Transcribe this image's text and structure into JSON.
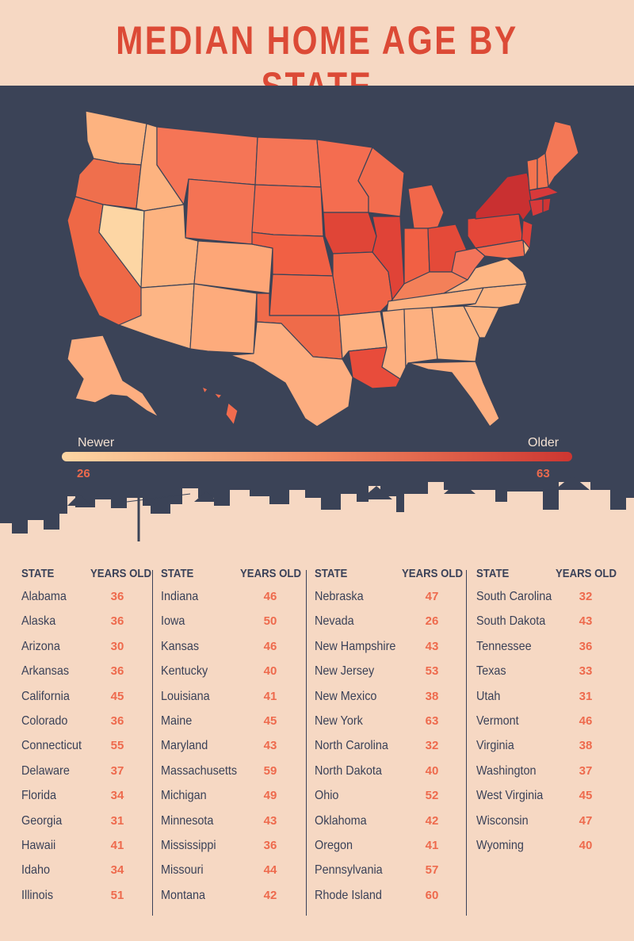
{
  "title": "MEDIAN HOME AGE BY STATE",
  "colors": {
    "background": "#f6d8c3",
    "panel": "#3b4357",
    "title": "#dc4a36",
    "value": "#ee6a4d",
    "text": "#3a4158",
    "scale_low": "#fdd6a4",
    "scale_high": "#cd3631"
  },
  "legend": {
    "newer_label": "Newer",
    "older_label": "Older",
    "min": 26,
    "max": 63,
    "min_label": "26",
    "max_label": "63"
  },
  "table": {
    "state_header": "STATE",
    "value_header": "YEARS OLD",
    "columns": [
      [
        {
          "state": "Alabama",
          "years": "36"
        },
        {
          "state": "Alaska",
          "years": "36"
        },
        {
          "state": "Arizona",
          "years": "30"
        },
        {
          "state": "Arkansas",
          "years": "36"
        },
        {
          "state": "California",
          "years": "45"
        },
        {
          "state": "Colorado",
          "years": "36"
        },
        {
          "state": "Connecticut",
          "years": "55"
        },
        {
          "state": "Delaware",
          "years": "37"
        },
        {
          "state": "Florida",
          "years": "34"
        },
        {
          "state": "Georgia",
          "years": "31"
        },
        {
          "state": "Hawaii",
          "years": "41"
        },
        {
          "state": "Idaho",
          "years": "34"
        },
        {
          "state": "Illinois",
          "years": "51"
        }
      ],
      [
        {
          "state": "Indiana",
          "years": "46"
        },
        {
          "state": "Iowa",
          "years": "50"
        },
        {
          "state": "Kansas",
          "years": "46"
        },
        {
          "state": "Kentucky",
          "years": "40"
        },
        {
          "state": "Louisiana",
          "years": "41"
        },
        {
          "state": "Maine",
          "years": "45"
        },
        {
          "state": "Maryland",
          "years": "43"
        },
        {
          "state": "Massachusetts",
          "years": "59"
        },
        {
          "state": "Michigan",
          "years": "49"
        },
        {
          "state": "Minnesota",
          "years": "43"
        },
        {
          "state": "Mississippi",
          "years": "36"
        },
        {
          "state": "Missouri",
          "years": "44"
        },
        {
          "state": "Montana",
          "years": "42"
        }
      ],
      [
        {
          "state": "Nebraska",
          "years": "47"
        },
        {
          "state": "Nevada",
          "years": "26"
        },
        {
          "state": "New Hampshire",
          "years": "43"
        },
        {
          "state": "New Jersey",
          "years": "53"
        },
        {
          "state": "New Mexico",
          "years": "38"
        },
        {
          "state": "New York",
          "years": "63"
        },
        {
          "state": "North Carolina",
          "years": "32"
        },
        {
          "state": "North Dakota",
          "years": "40"
        },
        {
          "state": "Ohio",
          "years": "52"
        },
        {
          "state": "Oklahoma",
          "years": "42"
        },
        {
          "state": "Oregon",
          "years": "41"
        },
        {
          "state": "Pennsylvania",
          "years": "57"
        },
        {
          "state": "Rhode Island",
          "years": "60"
        }
      ],
      [
        {
          "state": "South Carolina",
          "years": "32"
        },
        {
          "state": "South Dakota",
          "years": "43"
        },
        {
          "state": "Tennessee",
          "years": "36"
        },
        {
          "state": "Texas",
          "years": "33"
        },
        {
          "state": "Utah",
          "years": "31"
        },
        {
          "state": "Vermont",
          "years": "46"
        },
        {
          "state": "Virginia",
          "years": "38"
        },
        {
          "state": "Washington",
          "years": "37"
        },
        {
          "state": "West Virginia",
          "years": "45"
        },
        {
          "state": "Wisconsin",
          "years": "47"
        },
        {
          "state": "Wyoming",
          "years": "40"
        }
      ]
    ]
  }
}
